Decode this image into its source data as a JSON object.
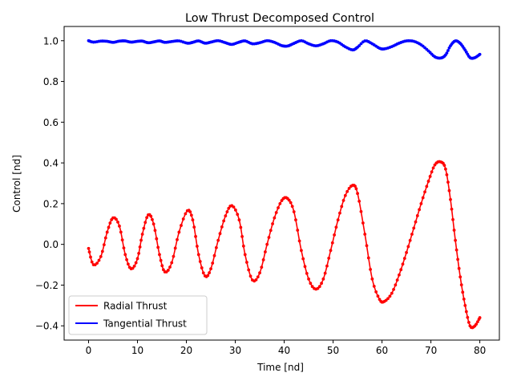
{
  "chart_data": {
    "type": "line",
    "title": "Low Thrust Decomposed Control",
    "xlabel": "Time [nd]",
    "ylabel": "Control [nd]",
    "xlim": [
      -5,
      84
    ],
    "ylim": [
      -0.47,
      1.07
    ],
    "xticks": [
      0,
      10,
      20,
      30,
      40,
      50,
      60,
      70,
      80
    ],
    "yticks": [
      -0.4,
      -0.2,
      0.0,
      0.2,
      0.4,
      0.6,
      0.8,
      1.0
    ],
    "ytick_labels": [
      "−0.4",
      "−0.2",
      "0.0",
      "0.2",
      "0.4",
      "0.6",
      "0.8",
      "1.0"
    ],
    "grid": false,
    "legend": {
      "position": "lower-left"
    },
    "series": [
      {
        "name": "Radial Thrust",
        "color": "#ff0000",
        "marker": "dot",
        "points": [
          [
            0.0,
            -0.02
          ],
          [
            1.0,
            -0.1
          ],
          [
            2.5,
            -0.06
          ],
          [
            3.8,
            0.06
          ],
          [
            5.0,
            0.13
          ],
          [
            6.3,
            0.09
          ],
          [
            7.5,
            -0.05
          ],
          [
            8.7,
            -0.12
          ],
          [
            10.0,
            -0.07
          ],
          [
            11.0,
            0.05
          ],
          [
            12.2,
            0.145
          ],
          [
            13.3,
            0.1
          ],
          [
            14.5,
            -0.05
          ],
          [
            15.6,
            -0.135
          ],
          [
            17.0,
            -0.09
          ],
          [
            18.5,
            0.06
          ],
          [
            20.2,
            0.165
          ],
          [
            21.3,
            0.12
          ],
          [
            22.5,
            -0.05
          ],
          [
            23.8,
            -0.155
          ],
          [
            25.0,
            -0.12
          ],
          [
            26.5,
            0.02
          ],
          [
            28.0,
            0.14
          ],
          [
            29.3,
            0.19
          ],
          [
            30.8,
            0.12
          ],
          [
            32.0,
            -0.05
          ],
          [
            33.5,
            -0.175
          ],
          [
            35.0,
            -0.14
          ],
          [
            36.5,
            0.0
          ],
          [
            38.0,
            0.13
          ],
          [
            39.5,
            0.215
          ],
          [
            40.7,
            0.225
          ],
          [
            42.0,
            0.16
          ],
          [
            43.5,
            -0.03
          ],
          [
            45.0,
            -0.17
          ],
          [
            46.5,
            -0.22
          ],
          [
            48.0,
            -0.17
          ],
          [
            49.5,
            -0.03
          ],
          [
            51.0,
            0.12
          ],
          [
            52.5,
            0.24
          ],
          [
            54.0,
            0.29
          ],
          [
            55.0,
            0.25
          ],
          [
            56.5,
            0.05
          ],
          [
            58.0,
            -0.17
          ],
          [
            59.5,
            -0.27
          ],
          [
            60.5,
            -0.28
          ],
          [
            62.0,
            -0.24
          ],
          [
            63.5,
            -0.15
          ],
          [
            65.0,
            -0.04
          ],
          [
            66.5,
            0.08
          ],
          [
            68.0,
            0.2
          ],
          [
            69.5,
            0.31
          ],
          [
            70.8,
            0.39
          ],
          [
            72.0,
            0.405
          ],
          [
            73.0,
            0.37
          ],
          [
            74.0,
            0.22
          ],
          [
            75.0,
            0.02
          ],
          [
            76.0,
            -0.16
          ],
          [
            77.0,
            -0.3
          ],
          [
            78.0,
            -0.4
          ],
          [
            79.0,
            -0.4
          ],
          [
            80.0,
            -0.36
          ]
        ]
      },
      {
        "name": "Tangential Thrust",
        "color": "#0000ff",
        "marker": "dot",
        "points": [
          [
            0.0,
            1.0
          ],
          [
            1.0,
            0.993
          ],
          [
            2.5,
            0.998
          ],
          [
            3.8,
            0.997
          ],
          [
            5.0,
            0.992
          ],
          [
            6.3,
            0.998
          ],
          [
            7.5,
            0.999
          ],
          [
            8.7,
            0.993
          ],
          [
            10.0,
            0.997
          ],
          [
            11.0,
            0.998
          ],
          [
            12.2,
            0.99
          ],
          [
            13.3,
            0.994
          ],
          [
            14.5,
            0.999
          ],
          [
            15.6,
            0.992
          ],
          [
            17.0,
            0.996
          ],
          [
            18.5,
            0.999
          ],
          [
            20.2,
            0.988
          ],
          [
            21.3,
            0.992
          ],
          [
            22.5,
            0.999
          ],
          [
            23.8,
            0.988
          ],
          [
            25.0,
            0.993
          ],
          [
            26.5,
            1.0
          ],
          [
            28.0,
            0.99
          ],
          [
            29.3,
            0.982
          ],
          [
            30.8,
            0.993
          ],
          [
            32.0,
            0.999
          ],
          [
            33.5,
            0.985
          ],
          [
            35.0,
            0.99
          ],
          [
            36.5,
            1.0
          ],
          [
            38.0,
            0.992
          ],
          [
            39.5,
            0.976
          ],
          [
            40.7,
            0.974
          ],
          [
            42.0,
            0.987
          ],
          [
            43.5,
            1.0
          ],
          [
            45.0,
            0.985
          ],
          [
            46.5,
            0.975
          ],
          [
            48.0,
            0.985
          ],
          [
            49.5,
            1.0
          ],
          [
            51.0,
            0.993
          ],
          [
            52.5,
            0.97
          ],
          [
            54.0,
            0.955
          ],
          [
            55.0,
            0.968
          ],
          [
            56.5,
            0.999
          ],
          [
            58.0,
            0.985
          ],
          [
            59.5,
            0.963
          ],
          [
            60.5,
            0.96
          ],
          [
            62.0,
            0.971
          ],
          [
            63.5,
            0.988
          ],
          [
            65.0,
            0.999
          ],
          [
            66.5,
            0.997
          ],
          [
            68.0,
            0.98
          ],
          [
            69.5,
            0.95
          ],
          [
            70.8,
            0.921
          ],
          [
            72.0,
            0.915
          ],
          [
            73.0,
            0.93
          ],
          [
            74.0,
            0.975
          ],
          [
            75.0,
            0.999
          ],
          [
            76.0,
            0.987
          ],
          [
            77.0,
            0.954
          ],
          [
            78.0,
            0.917
          ],
          [
            79.0,
            0.917
          ],
          [
            80.0,
            0.933
          ]
        ]
      }
    ]
  }
}
